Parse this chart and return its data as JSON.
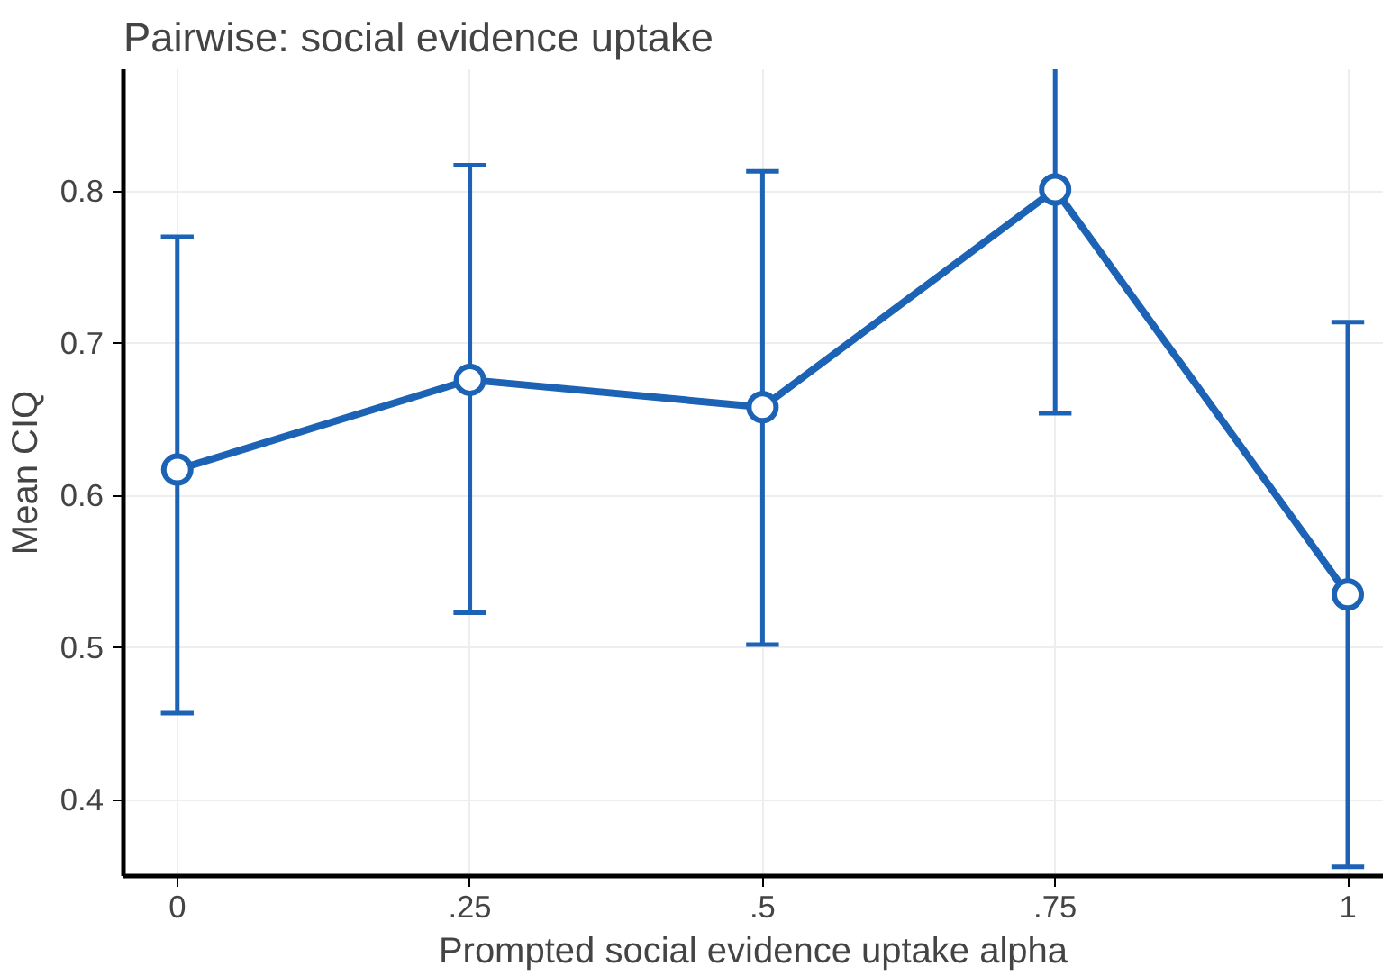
{
  "chart_data": {
    "type": "line",
    "title": "Pairwise: social evidence uptake",
    "xlabel": "Prompted social evidence uptake alpha",
    "ylabel": "Mean CIQ",
    "x": [
      0,
      0.25,
      0.5,
      0.75,
      1
    ],
    "series": [
      {
        "color": "#1c62b5",
        "values": [
          0.617,
          0.676,
          0.658,
          0.801,
          0.535
        ],
        "errors": [
          [
            0.457,
            0.77
          ],
          [
            0.523,
            0.817
          ],
          [
            0.502,
            0.813
          ],
          [
            0.654,
            0.88
          ],
          [
            0.356,
            0.714
          ]
        ]
      }
    ],
    "xlim": [
      -0.046,
      1.03
    ],
    "ylim": [
      0.35,
      0.88
    ],
    "xticks": [
      0,
      {
        "value": 0.25,
        "label": ".25"
      },
      {
        "value": 0.5,
        "label": ".5"
      },
      {
        "value": 0.75,
        "label": ".75"
      },
      1
    ],
    "yticks": [
      0.4,
      0.5,
      0.6,
      0.7,
      0.8
    ],
    "grid": true,
    "marker": "circle",
    "line_style": "solid"
  }
}
